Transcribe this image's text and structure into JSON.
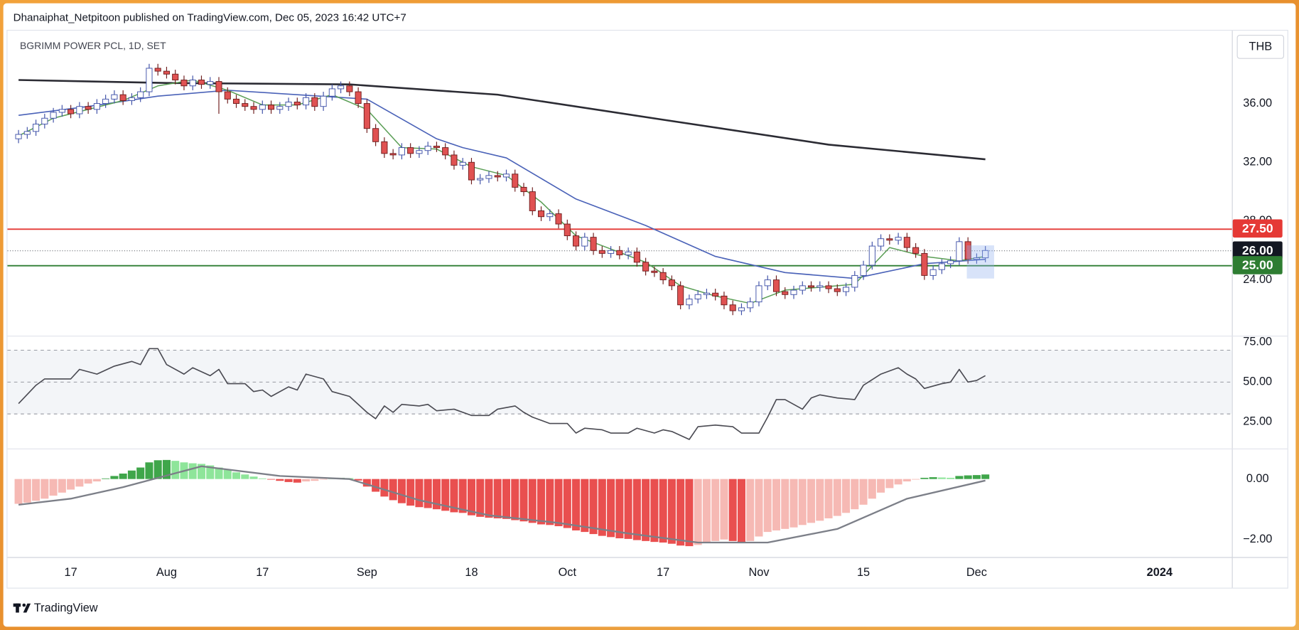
{
  "header": {
    "published": "Dhanaiphat_Netpitoon published on TradingView.com, Dec 05, 2023 16:42 UTC+7",
    "brand": "TradingView"
  },
  "chart_data": [
    {
      "type": "candlestick",
      "title": "BGRIMM POWER PCL, 1D, SET",
      "currency": "THB",
      "open": [
        33.6,
        33.9,
        34.1,
        34.6,
        35.0,
        35.4,
        35.6,
        35.3,
        35.8,
        35.6,
        36.0,
        36.3,
        36.6,
        36.2,
        36.4,
        36.8,
        38.4,
        38.2,
        38.0,
        37.6,
        37.2,
        37.6,
        37.3,
        37.5,
        36.8,
        36.3,
        36.0,
        35.8,
        35.6,
        35.9,
        35.6,
        35.8,
        36.1,
        35.9,
        36.4,
        35.8,
        36.5,
        37.0,
        37.2,
        36.8,
        36.0,
        34.3,
        33.4,
        32.6,
        32.5,
        33.0,
        32.6,
        32.8,
        33.1,
        33.0,
        32.5,
        31.8,
        32.0,
        30.8,
        30.9,
        31.1,
        31.0,
        31.2,
        30.3,
        30.0,
        28.7,
        28.3,
        28.5,
        27.8,
        27.0,
        26.3,
        26.9,
        26.0,
        25.8,
        26.0,
        25.7,
        25.9,
        25.2,
        24.6,
        24.5,
        24.0,
        23.6,
        22.3,
        22.7,
        23.0,
        23.1,
        22.9,
        22.3,
        21.9,
        22.1,
        22.5,
        23.6,
        24.0,
        23.2,
        23.0,
        23.3,
        23.6,
        23.5,
        23.6,
        23.4,
        23.2,
        23.5,
        24.3,
        25.0,
        26.3,
        26.8,
        26.7,
        26.9,
        26.2,
        25.8,
        24.3,
        24.7,
        25.1,
        25.3,
        26.6,
        25.4,
        25.5
      ],
      "high": [
        34.2,
        34.4,
        34.9,
        35.3,
        35.7,
        35.9,
        35.9,
        36.1,
        36.1,
        36.3,
        36.6,
        36.9,
        36.9,
        36.7,
        37.1,
        38.7,
        38.7,
        38.5,
        38.3,
        37.9,
        37.9,
        37.9,
        37.8,
        37.8,
        37.1,
        36.6,
        36.3,
        36.1,
        36.2,
        36.2,
        36.1,
        36.4,
        36.4,
        36.7,
        36.7,
        36.8,
        37.3,
        37.5,
        37.5,
        37.1,
        36.3,
        34.6,
        33.7,
        32.9,
        33.3,
        33.3,
        33.1,
        33.4,
        33.4,
        33.3,
        32.8,
        32.3,
        32.3,
        31.2,
        31.4,
        31.4,
        31.5,
        31.5,
        30.6,
        30.3,
        29.0,
        28.8,
        28.8,
        28.1,
        27.3,
        27.2,
        27.2,
        26.3,
        26.3,
        26.3,
        26.2,
        26.2,
        25.5,
        24.9,
        24.8,
        24.3,
        23.9,
        23.0,
        23.3,
        23.4,
        23.4,
        23.2,
        22.6,
        22.4,
        22.8,
        23.9,
        24.3,
        24.3,
        23.5,
        23.6,
        23.9,
        23.9,
        23.9,
        23.9,
        23.7,
        23.8,
        24.6,
        25.3,
        26.6,
        27.1,
        27.1,
        27.2,
        27.2,
        26.5,
        26.1,
        25.0,
        25.4,
        25.6,
        26.9,
        26.9,
        25.8,
        26.3
      ],
      "low": [
        33.3,
        33.6,
        33.8,
        34.3,
        34.7,
        35.1,
        35.0,
        35.0,
        35.3,
        35.3,
        35.7,
        36.0,
        35.9,
        35.9,
        36.1,
        36.5,
        37.9,
        37.7,
        37.3,
        36.9,
        36.9,
        37.0,
        37.0,
        35.3,
        36.0,
        35.7,
        35.5,
        35.3,
        35.3,
        35.3,
        35.3,
        35.5,
        35.6,
        35.6,
        35.5,
        35.5,
        36.2,
        36.7,
        36.5,
        35.7,
        34.0,
        33.1,
        32.3,
        32.2,
        32.2,
        32.3,
        32.3,
        32.5,
        32.7,
        32.2,
        31.5,
        31.5,
        30.5,
        30.5,
        30.6,
        30.7,
        30.7,
        30.0,
        29.7,
        28.4,
        28.0,
        28.0,
        27.5,
        26.7,
        26.0,
        26.0,
        25.7,
        25.5,
        25.5,
        25.4,
        25.4,
        24.9,
        24.3,
        24.2,
        23.7,
        23.3,
        22.0,
        22.0,
        22.4,
        22.7,
        22.6,
        22.0,
        21.6,
        21.6,
        21.8,
        22.2,
        23.3,
        22.9,
        22.7,
        22.7,
        23.0,
        23.2,
        23.2,
        23.1,
        22.9,
        22.9,
        23.2,
        24.0,
        24.7,
        26.0,
        26.4,
        26.4,
        25.9,
        25.5,
        24.0,
        24.0,
        24.4,
        24.8,
        25.0,
        25.1,
        25.1,
        25.2
      ],
      "close": [
        33.9,
        34.1,
        34.6,
        35.0,
        35.4,
        35.6,
        35.3,
        35.8,
        35.6,
        36.0,
        36.3,
        36.6,
        36.2,
        36.4,
        36.8,
        38.4,
        38.2,
        38.0,
        37.6,
        37.2,
        37.6,
        37.3,
        37.5,
        36.8,
        36.3,
        36.0,
        35.8,
        35.6,
        35.9,
        35.6,
        35.8,
        36.1,
        35.9,
        36.4,
        35.8,
        36.5,
        37.0,
        37.2,
        36.8,
        36.0,
        34.3,
        33.4,
        32.6,
        32.5,
        33.0,
        32.6,
        32.8,
        33.1,
        33.0,
        32.5,
        31.8,
        32.0,
        30.8,
        30.9,
        31.1,
        31.0,
        31.2,
        30.3,
        30.0,
        28.7,
        28.3,
        28.5,
        27.8,
        27.0,
        26.3,
        26.9,
        26.0,
        25.8,
        26.0,
        25.7,
        25.9,
        25.2,
        24.6,
        24.5,
        24.0,
        23.6,
        22.3,
        22.7,
        23.0,
        23.1,
        22.9,
        22.3,
        21.9,
        22.1,
        22.5,
        23.6,
        24.0,
        23.2,
        23.0,
        23.3,
        23.6,
        23.5,
        23.6,
        23.4,
        23.2,
        23.5,
        24.3,
        25.0,
        26.3,
        26.8,
        26.7,
        26.9,
        26.2,
        25.8,
        24.3,
        24.7,
        25.1,
        25.3,
        26.6,
        25.4,
        25.5,
        26.0
      ],
      "up_color": "#ffffff",
      "up_border": "#3f51a8",
      "down_color": "#e05252",
      "down_border": "#6e1d1d",
      "series": [
        {
          "color": "#2b2b33",
          "width": 2.2,
          "x": [
            0,
            17,
            38,
            55,
            74,
            93,
            111
          ],
          "values": [
            37.6,
            37.4,
            37.3,
            36.6,
            34.9,
            33.2,
            32.2
          ]
        },
        {
          "color": "#4a62b8",
          "width": 1.4,
          "x": [
            0,
            8,
            16,
            24,
            32,
            40,
            48,
            51,
            56,
            64,
            72,
            80,
            88,
            96,
            104,
            111
          ],
          "values": [
            35.2,
            35.8,
            36.5,
            36.9,
            36.6,
            36.3,
            33.6,
            33.0,
            32.3,
            29.5,
            27.7,
            25.6,
            24.5,
            24.1,
            25.1,
            25.4
          ]
        },
        {
          "color": "#5a9e55",
          "width": 1.3,
          "x": [
            0,
            4,
            8,
            12,
            16,
            20,
            24,
            28,
            32,
            36,
            40,
            44,
            48,
            52,
            56,
            60,
            64,
            68,
            72,
            76,
            80,
            84,
            88,
            92,
            96,
            100,
            104,
            108,
            111
          ],
          "values": [
            33.8,
            35.0,
            35.6,
            36.2,
            37.2,
            37.6,
            36.9,
            35.9,
            35.9,
            36.6,
            35.6,
            33.0,
            32.9,
            31.7,
            31.1,
            29.3,
            27.0,
            26.1,
            25.2,
            23.6,
            22.9,
            22.4,
            23.3,
            23.5,
            23.7,
            26.2,
            25.6,
            25.3,
            25.6
          ]
        }
      ],
      "levels": [
        {
          "value": 27.5,
          "label": "27.50",
          "color": "#e53935",
          "dashed": false
        },
        {
          "value": 26,
          "label": "26.00",
          "color": "#131722",
          "dashed": true
        },
        {
          "value": 25,
          "label": "25.00",
          "color": "#2e7d32",
          "dashed": false
        }
      ],
      "ylim": [
        20.2,
        40.9
      ],
      "yticks": [
        {
          "value": 24,
          "label": "24.00"
        },
        {
          "value": 28,
          "label": "28.00"
        },
        {
          "value": 32,
          "label": "32.00"
        },
        {
          "value": 36,
          "label": "36.00"
        }
      ]
    },
    {
      "type": "line",
      "series": [
        {
          "color": "#4a4a52",
          "width": 1.4,
          "x": [
            0,
            2,
            3,
            6,
            7,
            9,
            11,
            13,
            14,
            15,
            16,
            17,
            19,
            20,
            22,
            23,
            24,
            26,
            27,
            28,
            29,
            31,
            32,
            33,
            35,
            36,
            38,
            40,
            41,
            42,
            43,
            44,
            46,
            47,
            48,
            50,
            52,
            54,
            55,
            57,
            58,
            59,
            61,
            63,
            64,
            65,
            67,
            68,
            70,
            71,
            73,
            74,
            75,
            77,
            78,
            80,
            82,
            83,
            85,
            86,
            87,
            88,
            90,
            91,
            92,
            94,
            96,
            97,
            99,
            101,
            102,
            103,
            104,
            106,
            107,
            108,
            109,
            110,
            111
          ],
          "values": [
            36.5,
            48,
            52,
            52,
            58,
            55,
            60,
            63,
            61,
            71,
            71,
            61,
            55,
            59,
            54,
            58,
            49,
            49,
            44,
            45,
            41,
            47,
            45,
            55,
            52,
            44,
            41,
            31,
            27,
            35,
            31,
            36,
            35,
            36,
            32,
            33,
            29,
            29,
            33,
            35,
            31,
            28,
            24,
            24,
            18,
            21,
            20,
            18,
            18,
            21,
            18,
            20,
            19,
            14,
            22,
            23,
            22,
            18,
            18,
            28,
            39,
            39,
            33,
            40,
            42,
            40,
            39,
            48,
            55,
            59,
            55,
            52,
            46,
            49,
            50,
            58,
            50,
            51,
            54
          ]
        }
      ],
      "guides": [
        30,
        50,
        70
      ],
      "ylim": [
        8.3,
        78.6
      ],
      "yticks": [
        {
          "value": 25,
          "label": "25.00"
        },
        {
          "value": 50,
          "label": "50.00"
        },
        {
          "value": 75,
          "label": "75.00"
        }
      ]
    },
    {
      "type": "macd",
      "values": [
        -0.82,
        -0.78,
        -0.72,
        -0.65,
        -0.55,
        -0.45,
        -0.35,
        -0.25,
        -0.15,
        -0.08,
        0.02,
        0.1,
        0.18,
        0.28,
        0.38,
        0.55,
        0.62,
        0.63,
        0.6,
        0.55,
        0.52,
        0.5,
        0.45,
        0.38,
        0.3,
        0.22,
        0.15,
        0.08,
        0.02,
        -0.02,
        -0.06,
        -0.1,
        -0.12,
        -0.08,
        -0.06,
        -0.02,
        0.02,
        0.04,
        0.03,
        -0.05,
        -0.25,
        -0.42,
        -0.58,
        -0.7,
        -0.8,
        -0.88,
        -0.93,
        -0.96,
        -1.0,
        -1.05,
        -1.1,
        -1.12,
        -1.2,
        -1.25,
        -1.28,
        -1.3,
        -1.32,
        -1.36,
        -1.4,
        -1.45,
        -1.5,
        -1.52,
        -1.56,
        -1.62,
        -1.7,
        -1.75,
        -1.82,
        -1.88,
        -1.92,
        -1.96,
        -1.98,
        -2.02,
        -2.05,
        -2.08,
        -2.1,
        -2.14,
        -2.2,
        -2.22,
        -2.18,
        -2.12,
        -2.05,
        -2.0,
        -2.05,
        -2.08,
        -2.05,
        -1.9,
        -1.75,
        -1.7,
        -1.65,
        -1.6,
        -1.52,
        -1.45,
        -1.38,
        -1.3,
        -1.22,
        -1.12,
        -1.0,
        -0.85,
        -0.65,
        -0.45,
        -0.3,
        -0.18,
        -0.08,
        -0.02,
        0.04,
        0.06,
        0.05,
        0.04,
        0.1,
        0.12,
        0.13,
        0.15
      ],
      "colors": [
        "#3fa64a",
        "#8ee59a",
        "#e94f4f",
        "#f6b9b4"
      ],
      "series": [
        {
          "color": "#7c7f88",
          "width": 2,
          "x": [
            0,
            6,
            12,
            21,
            30,
            38,
            46,
            54,
            62,
            70,
            78,
            86,
            94,
            102,
            111
          ],
          "values": [
            -0.85,
            -0.65,
            -0.27,
            0.42,
            0.1,
            0.0,
            -0.7,
            -1.2,
            -1.45,
            -1.8,
            -2.1,
            -2.1,
            -1.65,
            -0.65,
            -0.05
          ]
        }
      ],
      "ylim": [
        -2.58,
        1.01
      ],
      "yticks": [
        {
          "value": -2,
          "label": "−2.00"
        },
        {
          "value": 0,
          "label": "0.00"
        }
      ],
      "xlim": [
        -0.7,
        139.3
      ],
      "xticks": [
        {
          "value": 6,
          "label": "17"
        },
        {
          "value": 17,
          "label": "Aug"
        },
        {
          "value": 28,
          "label": "17"
        },
        {
          "value": 40,
          "label": "Sep"
        },
        {
          "value": 52,
          "label": "18"
        },
        {
          "value": 63,
          "label": "Oct"
        },
        {
          "value": 74,
          "label": "17"
        },
        {
          "value": 85,
          "label": "Nov"
        },
        {
          "value": 97,
          "label": "15"
        },
        {
          "value": 110,
          "label": "Dec"
        },
        {
          "value": 131,
          "label": "2024"
        }
      ]
    }
  ]
}
